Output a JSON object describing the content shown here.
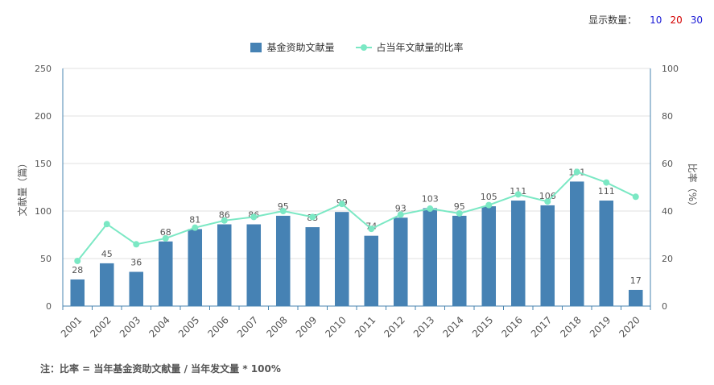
{
  "controls": {
    "label": "显示数量：",
    "options": [
      {
        "label": "10",
        "color": "#1a1ad6"
      },
      {
        "label": "20",
        "color": "#d40000"
      },
      {
        "label": "30",
        "color": "#1a1ad6"
      }
    ]
  },
  "footnote": "注：比率 = 当年基金资助文献量 / 当年发文量 * 100%",
  "colors": {
    "bar": "#4682b4",
    "line": "#7be8c4",
    "axis": "#4a86b0",
    "grid": "#e0e0e0"
  },
  "chart_data": {
    "type": "bar",
    "categories": [
      "2001",
      "2002",
      "2003",
      "2004",
      "2005",
      "2006",
      "2007",
      "2008",
      "2009",
      "2010",
      "2011",
      "2012",
      "2013",
      "2014",
      "2015",
      "2016",
      "2017",
      "2018",
      "2019",
      "2020"
    ],
    "series": [
      {
        "name": "基金资助文献量",
        "type": "bar",
        "axis": "left",
        "values": [
          28,
          45,
          36,
          68,
          81,
          86,
          86,
          95,
          83,
          99,
          74,
          93,
          103,
          95,
          105,
          111,
          106,
          131,
          111,
          17
        ]
      },
      {
        "name": "占当年文献量的比率",
        "type": "line",
        "axis": "right",
        "values": [
          19,
          34.5,
          26,
          28.5,
          33,
          36,
          37.5,
          40,
          37.5,
          43,
          32.5,
          38.5,
          41,
          39,
          42.5,
          47,
          44,
          56.5,
          52,
          46
        ]
      }
    ],
    "ylabel": "文献量（篇）",
    "ylabel_right": "比率（%）",
    "ylim": [
      0,
      250
    ],
    "ylim_right": [
      0,
      100
    ],
    "yticks": [
      "0",
      "50",
      "100",
      "150",
      "200",
      "250"
    ],
    "yticks_right": [
      "0",
      "20",
      "40",
      "60",
      "80",
      "100"
    ],
    "grid": true,
    "legend_position": "top-center"
  }
}
